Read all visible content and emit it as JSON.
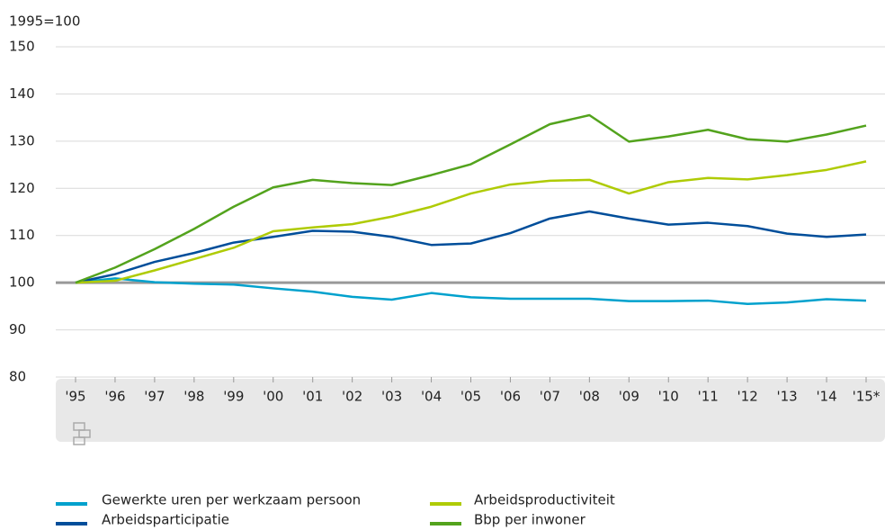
{
  "chart_data": {
    "type": "line",
    "y_axis_label": "1995=100",
    "categories": [
      "'95",
      "'96",
      "'97",
      "'98",
      "'99",
      "'00",
      "'01",
      "'02",
      "'03",
      "'04",
      "'05",
      "'06",
      "'07",
      "'08",
      "'09",
      "'10",
      "'11",
      "'12",
      "'13",
      "'14",
      "'15*"
    ],
    "series": [
      {
        "name": "Gewerkte uren per werkzaam persoon",
        "color": "#00a1cd",
        "values": [
          100,
          100.9,
          100.1,
          99.8,
          99.6,
          98.8,
          98.1,
          97,
          96.4,
          97.8,
          96.9,
          96.6,
          96.6,
          96.6,
          96.1,
          96.1,
          96.2,
          95.5,
          95.8,
          96.5,
          96.2
        ]
      },
      {
        "name": "Arbeidsparticipatie",
        "color": "#004e9a",
        "values": [
          100,
          101.8,
          104.4,
          106.3,
          108.5,
          109.7,
          111,
          110.8,
          109.7,
          108,
          108.3,
          110.5,
          113.6,
          115.1,
          113.6,
          112.3,
          112.7,
          112,
          110.4,
          109.7,
          110.2
        ]
      },
      {
        "name": "Arbeidsproductiviteit",
        "color": "#afcb05",
        "values": [
          100,
          100.4,
          102.6,
          105,
          107.4,
          110.9,
          111.7,
          112.4,
          114,
          116.1,
          118.9,
          120.8,
          121.6,
          121.8,
          118.9,
          121.3,
          122.2,
          121.9,
          122.8,
          123.9,
          125.7
        ]
      },
      {
        "name": "Bbp per inwoner",
        "color": "#53a31d",
        "values": [
          100,
          103.2,
          107.1,
          111.4,
          116.1,
          120.2,
          121.8,
          121.1,
          120.7,
          122.8,
          125.1,
          129.3,
          133.6,
          135.5,
          129.9,
          131,
          132.4,
          130.4,
          129.9,
          131.4,
          133.3
        ]
      }
    ],
    "ylim": [
      80,
      150
    ],
    "yticks": [
      80,
      90,
      100,
      110,
      120,
      130,
      140,
      150
    ],
    "reference_line": 100,
    "grid": true
  }
}
